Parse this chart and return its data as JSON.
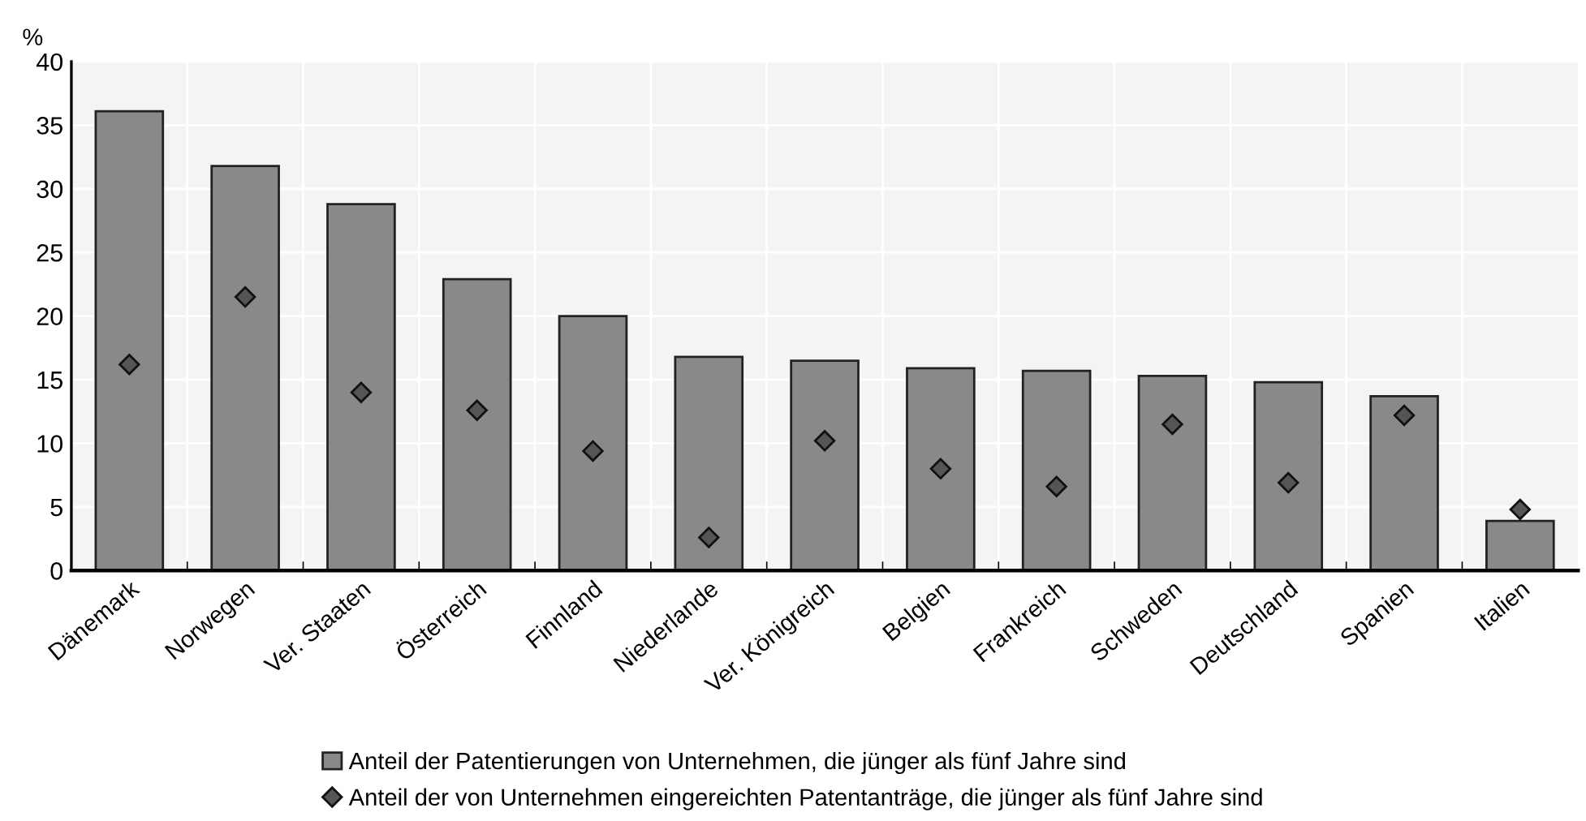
{
  "chart_data": {
    "type": "bar",
    "ylabel": "%",
    "categories": [
      "Dänemark",
      "Norwegen",
      "Ver. Staaten",
      "Österreich",
      "Finnland",
      "Niederlande",
      "Ver. Königreich",
      "Belgien",
      "Frankreich",
      "Schweden",
      "Deutschland",
      "Spanien",
      "Italien"
    ],
    "series": [
      {
        "name": "Anteil der Patentierungen von Unternehmen, die jünger als fünf Jahre sind",
        "color": "#898989",
        "values": [
          36.1,
          31.8,
          28.8,
          22.9,
          20.0,
          16.8,
          16.5,
          15.9,
          15.7,
          15.3,
          14.8,
          13.7,
          3.9
        ]
      },
      {
        "name": "Anteil der von Unternehmen eingereichten Patentanträge, die jünger als fünf Jahre sind",
        "type": "scatter",
        "color": "#555555",
        "marker": "diamond",
        "values": [
          16.2,
          21.5,
          14.0,
          12.6,
          9.4,
          2.6,
          10.2,
          8.0,
          6.6,
          11.5,
          6.9,
          12.2,
          4.8
        ]
      }
    ],
    "ylim": [
      0,
      40
    ],
    "yticks": [
      0,
      5,
      10,
      15,
      20,
      25,
      30,
      35,
      40
    ],
    "grid": true,
    "legend": "bottom"
  }
}
